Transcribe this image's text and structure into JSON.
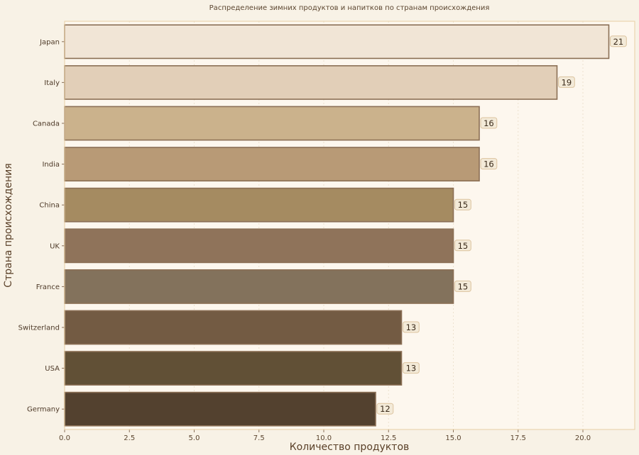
{
  "chart_data": {
    "type": "bar",
    "orientation": "horizontal",
    "title": "Распределение зимних продуктов и напитков по странам происхождения",
    "xlabel": "Количество продуктов",
    "ylabel": "Страна происхождения",
    "xlim": [
      0,
      22
    ],
    "xticks": [
      "0.0",
      "2.5",
      "5.0",
      "7.5",
      "10.0",
      "12.5",
      "15.0",
      "17.5",
      "20.0"
    ],
    "grid": true,
    "categories": [
      "Japan",
      "Italy",
      "Canada",
      "India",
      "China",
      "UK",
      "France",
      "Switzerland",
      "USA",
      "Germany"
    ],
    "values": [
      21,
      19,
      16,
      16,
      15,
      15,
      15,
      13,
      13,
      12
    ],
    "colors": [
      "#f1e5d6",
      "#e2cfb8",
      "#cbb28c",
      "#b89a76",
      "#a58b61",
      "#8f735a",
      "#83725c",
      "#735b43",
      "#615036",
      "#53412f"
    ],
    "bar_edge_color": "#8b6f55",
    "background": "#fdf7ee",
    "label_box_fill": "#f3ead8",
    "label_box_stroke": "#dcc39e"
  }
}
